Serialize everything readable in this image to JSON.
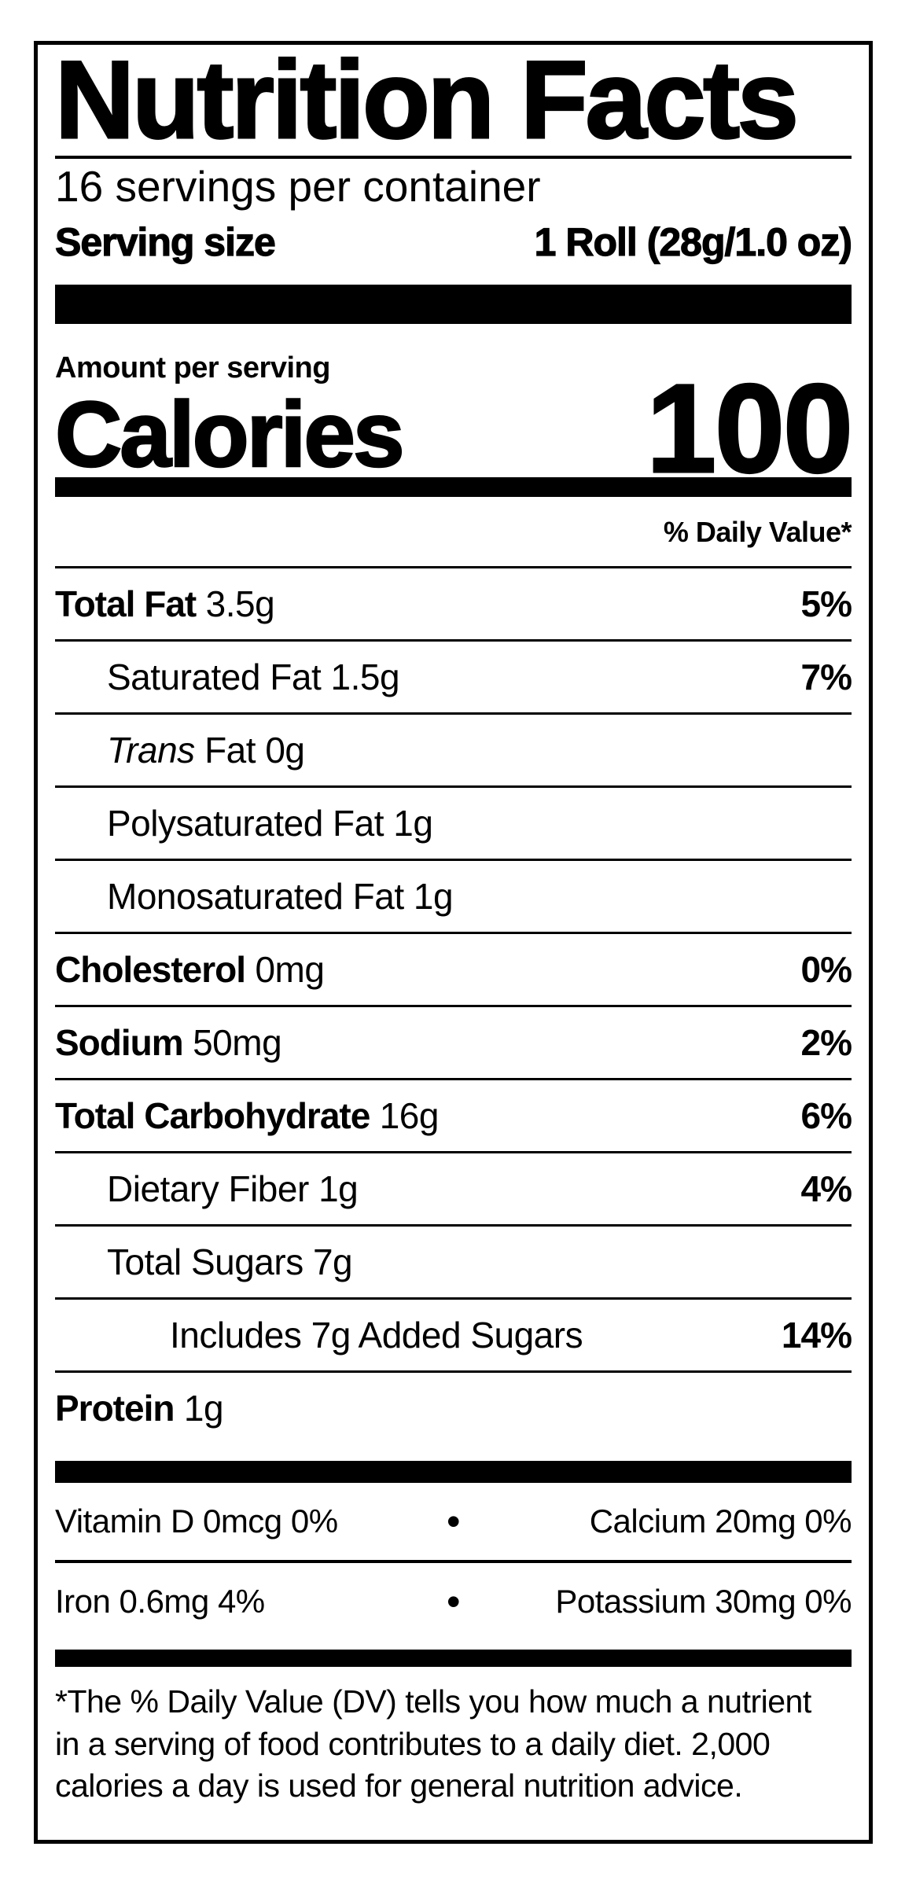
{
  "colors": {
    "ink": "#000000",
    "paper": "#ffffff"
  },
  "header": {
    "title": "Nutrition Facts",
    "servings_per_container": "16 servings per container",
    "serving_size_label": "Serving size",
    "serving_size_value": "1 Roll (28g/1.0 oz)"
  },
  "calories_section": {
    "amount_label": "Amount per serving",
    "calories_label": "Calories",
    "calories_value": "100"
  },
  "daily_value_header": "% Daily Value*",
  "rows": [
    {
      "bold": "Total Fat",
      "text": "3.5g",
      "dv": "5%"
    },
    {
      "text": "Saturated Fat 1.5g",
      "dv": "7%"
    },
    {
      "italic": "Trans",
      "text": "Fat 0g"
    },
    {
      "text": "Polysaturated Fat 1g"
    },
    {
      "text": "Monosaturated Fat 1g"
    },
    {
      "bold": "Cholesterol",
      "text": "0mg",
      "dv": "0%"
    },
    {
      "bold": "Sodium",
      "text": "50mg",
      "dv": "2%"
    },
    {
      "bold": "Total Carbohydrate",
      "text": "16g",
      "dv": "6%"
    },
    {
      "text": "Dietary Fiber 1g",
      "dv": "4%"
    },
    {
      "text": "Total Sugars 7g"
    },
    {
      "text": "Includes 7g Added Sugars",
      "dv": "14%"
    },
    {
      "bold": "Protein",
      "text": "1g"
    }
  ],
  "vitamins": {
    "bullet": "•",
    "rows": [
      {
        "left": "Vitamin D 0mcg 0%",
        "right": "Calcium 20mg 0%"
      },
      {
        "left": "Iron 0.6mg 4%",
        "right": "Potassium 30mg 0%"
      }
    ]
  },
  "footnote": {
    "lines": [
      "*The % Daily Value (DV) tells you how much a nutrient",
      "in a serving of food contributes to a daily diet. 2,000",
      "calories a day is used for general nutrition advice."
    ]
  }
}
